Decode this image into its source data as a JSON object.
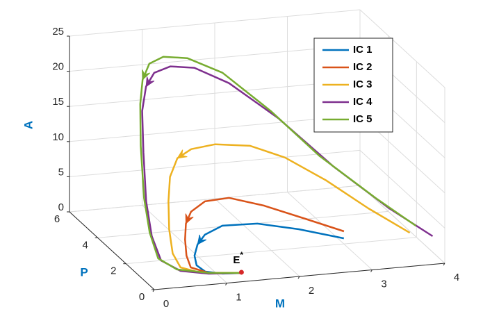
{
  "chart_data": {
    "type": "line3d",
    "xlabel": "M",
    "ylabel": "P",
    "zlabel": "A",
    "xlim": [
      0,
      4
    ],
    "ylim": [
      0,
      6
    ],
    "zlim": [
      0,
      25
    ],
    "xticks": [
      0,
      1,
      2,
      3,
      4
    ],
    "yticks": [
      0,
      2,
      4,
      6
    ],
    "zticks": [
      0,
      5,
      10,
      15,
      20,
      25
    ],
    "grid": true,
    "legend_position": "northeast",
    "series": [
      {
        "name": "IC 1",
        "color": "#0072BD",
        "x": [
          3.0,
          2.34,
          1.73,
          1.21,
          0.93,
          0.79,
          0.71,
          0.7,
          0.78,
          0.98,
          1.22
        ],
        "y": [
          2.0,
          1.8,
          1.6,
          1.4,
          1.2,
          1.0,
          0.8,
          0.6,
          0.4,
          0.2,
          0
        ],
        "z": [
          0.8,
          3.08,
          4.82,
          5.38,
          4.73,
          3.84,
          2.7,
          1.69,
          1.1,
          0.99,
          1.23
        ]
      },
      {
        "name": "IC 2",
        "color": "#D95319",
        "x": [
          3.04,
          2.47,
          1.86,
          1.34,
          0.97,
          0.74,
          0.63,
          0.58,
          0.56,
          0.58,
          0.79,
          1.22
        ],
        "y": [
          2.2,
          2.0,
          1.8,
          1.6,
          1.4,
          1.2,
          1.0,
          0.8,
          0.6,
          0.4,
          0.2,
          0
        ],
        "z": [
          1.39,
          4.07,
          6.89,
          8.85,
          9.07,
          8.18,
          6.96,
          5.1,
          3.22,
          1.88,
          1.27,
          1.23
        ]
      },
      {
        "name": "IC 3",
        "color": "#EDB120",
        "x": [
          3.81,
          3.26,
          2.7,
          2.15,
          1.67,
          1.17,
          0.82,
          0.59,
          0.45,
          0.39,
          0.36,
          0.37,
          0.44,
          0.69,
          1.22
        ],
        "y": [
          1.5,
          1.6,
          1.7,
          1.8,
          1.8,
          1.7,
          1.6,
          1.4,
          1.2,
          1.0,
          0.8,
          0.6,
          0.4,
          0.2,
          0
        ],
        "z": [
          1.75,
          5.55,
          9.85,
          13.46,
          15.58,
          16.45,
          16.27,
          15.56,
          13.4,
          10.36,
          6.79,
          3.69,
          2.01,
          1.36,
          1.23
        ]
      },
      {
        "name": "IC 4",
        "color": "#7E2F8E",
        "x": [
          3.93,
          3.43,
          2.76,
          2.19,
          1.71,
          1.33,
          1.0,
          0.68,
          0.47,
          0.32,
          0.24,
          0.18,
          0.16,
          0.21,
          0.42,
          0.77,
          1.22
        ],
        "y": [
          0.5,
          1.0,
          1.5,
          2.5,
          3.5,
          4.0,
          4.0,
          3.5,
          3.0,
          2.5,
          2.0,
          1.5,
          1.0,
          0.6,
          0.3,
          0.1,
          0
        ],
        "z": [
          3.0,
          6.5,
          12.15,
          17.76,
          21.32,
          22.93,
          23.44,
          23.76,
          22.91,
          20.5,
          15.58,
          9.62,
          5.62,
          2.85,
          1.72,
          1.37,
          1.23
        ]
      },
      {
        "name": "IC 5",
        "color": "#77AC30",
        "x": [
          3.7,
          3.24,
          2.57,
          2.09,
          1.62,
          1.33,
          1.0,
          0.71,
          0.52,
          0.39,
          0.3,
          0.21,
          0.17,
          0.19,
          0.37,
          0.77,
          1.22
        ],
        "y": [
          0.5,
          1.0,
          1.5,
          2.5,
          3.5,
          4.5,
          4.5,
          4.0,
          3.5,
          3.0,
          2.5,
          1.8,
          1.2,
          0.7,
          0.3,
          0.1,
          0
        ],
        "z": [
          4.69,
          8.17,
          13.81,
          18.84,
          22.88,
          23.39,
          23.89,
          24.11,
          22.93,
          20.51,
          15.57,
          9.53,
          5.74,
          2.98,
          1.97,
          1.47,
          1.23
        ]
      }
    ],
    "equilibrium": {
      "label": "E",
      "label_superscript": "*",
      "x": 1.2,
      "y": 0,
      "z": 1.35,
      "color": "#D62728"
    }
  }
}
